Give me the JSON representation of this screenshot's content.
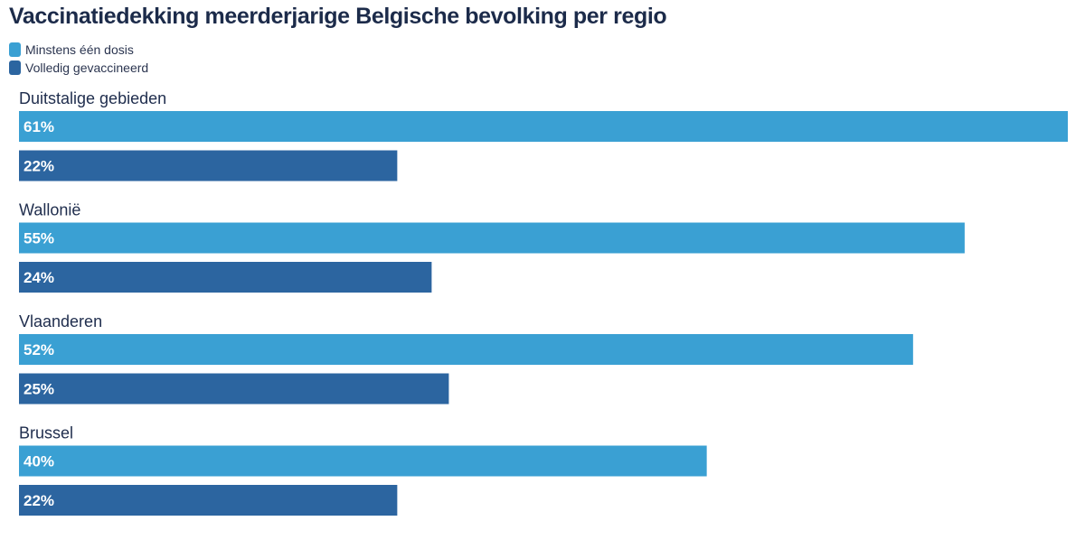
{
  "chart_data": {
    "type": "bar",
    "orientation": "horizontal",
    "title": "Vaccinatiedekking meerderjarige Belgische bevolking per regio",
    "categories": [
      "Duitstalige gebieden",
      "Wallonië",
      "Vlaanderen",
      "Brussel"
    ],
    "series": [
      {
        "name": "Minstens één dosis",
        "color": "#3aa0d3",
        "values": [
          61,
          55,
          52,
          40
        ],
        "labels": [
          "61%",
          "55%",
          "52%",
          "40%"
        ]
      },
      {
        "name": "Volledig gevaccineerd",
        "color": "#2c65a0",
        "values": [
          22,
          24,
          25,
          22
        ],
        "labels": [
          "22%",
          "24%",
          "25%",
          "22%"
        ]
      }
    ],
    "xlim": [
      0,
      61
    ],
    "legend_position": "top-left",
    "grid": false
  }
}
